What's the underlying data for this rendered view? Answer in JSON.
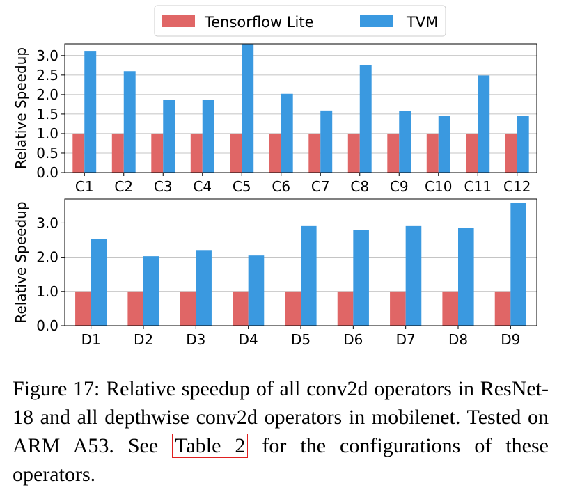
{
  "legend": {
    "items": [
      {
        "label": "Tensorflow Lite",
        "color": "#e06666"
      },
      {
        "label": "TVM",
        "color": "#3a99e0"
      }
    ]
  },
  "caption": {
    "part1": "Figure 17: Relative speedup of all conv2d operators in ResNet-18 and all depthwise conv2d operators in mobilenet. Tested on ARM A53. See ",
    "ref": "Table 2",
    "part2": " for the configurations of these operators."
  },
  "chart_data": [
    {
      "type": "bar",
      "ylabel": "Relative Speedup",
      "categories": [
        "C1",
        "C2",
        "C3",
        "C4",
        "C5",
        "C6",
        "C7",
        "C8",
        "C9",
        "C10",
        "C11",
        "C12"
      ],
      "series": [
        {
          "name": "Tensorflow Lite",
          "color": "#e06666",
          "values": [
            1,
            1,
            1,
            1,
            1,
            1,
            1,
            1,
            1,
            1,
            1,
            1
          ]
        },
        {
          "name": "TVM",
          "color": "#3a99e0",
          "values": [
            3.12,
            2.6,
            1.87,
            1.87,
            3.29,
            2.02,
            1.59,
            2.75,
            1.57,
            1.46,
            2.49,
            1.46
          ]
        }
      ],
      "ylim": [
        0,
        3.3
      ],
      "yticks": [
        "0.0",
        "0.5",
        "1.0",
        "1.5",
        "2.0",
        "2.5",
        "3.0"
      ],
      "grid": true
    },
    {
      "type": "bar",
      "ylabel": "Relative Speedup",
      "categories": [
        "D1",
        "D2",
        "D3",
        "D4",
        "D5",
        "D6",
        "D7",
        "D8",
        "D9"
      ],
      "series": [
        {
          "name": "Tensorflow Lite",
          "color": "#e06666",
          "values": [
            1,
            1,
            1,
            1,
            1,
            1,
            1,
            1,
            1
          ]
        },
        {
          "name": "TVM",
          "color": "#3a99e0",
          "values": [
            2.54,
            2.03,
            2.21,
            2.05,
            2.91,
            2.79,
            2.91,
            2.85,
            3.59
          ]
        }
      ],
      "ylim": [
        0,
        3.7
      ],
      "yticks": [
        "0.0",
        "1.0",
        "2.0",
        "3.0"
      ],
      "grid": true
    }
  ]
}
